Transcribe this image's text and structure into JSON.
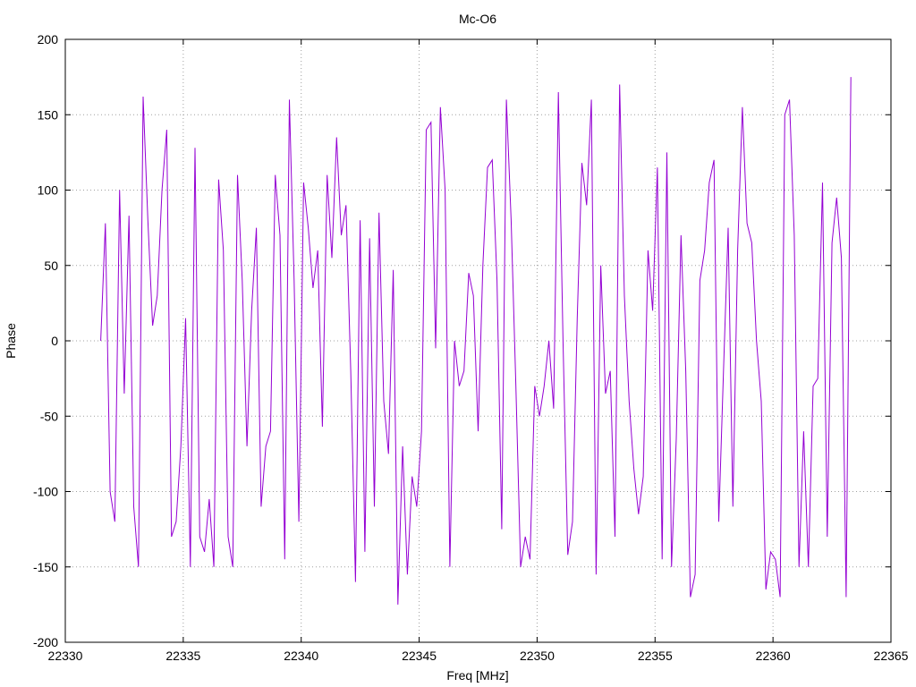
{
  "chart_data": {
    "type": "line",
    "title": "Mc-O6",
    "xlabel": "Freq [MHz]",
    "ylabel": "Phase",
    "xlim": [
      22330,
      22365
    ],
    "ylim": [
      -200,
      200
    ],
    "xticks": [
      22330,
      22335,
      22340,
      22345,
      22350,
      22355,
      22360,
      22365
    ],
    "yticks": [
      -200,
      -150,
      -100,
      -50,
      0,
      50,
      100,
      150,
      200
    ],
    "grid": true,
    "legend": false,
    "line_color": "#9400d3",
    "series": [
      {
        "values_x": [
          22331.5,
          22331.7,
          22331.9,
          22332.1,
          22332.3,
          22332.5,
          22332.7,
          22332.9,
          22333.1,
          22333.3,
          22333.5,
          22333.7,
          22333.9,
          22334.1,
          22334.3,
          22334.5,
          22334.7,
          22334.9,
          22335.1,
          22335.3,
          22335.5,
          22335.7,
          22335.9,
          22336.1,
          22336.3,
          22336.5,
          22336.7,
          22336.9,
          22337.1,
          22337.3,
          22337.5,
          22337.7,
          22337.9,
          22338.1,
          22338.3,
          22338.5,
          22338.7,
          22338.9,
          22339.1,
          22339.3,
          22339.5,
          22339.7,
          22339.9,
          22340.1,
          22340.3,
          22340.5,
          22340.7,
          22340.9,
          22341.1,
          22341.3,
          22341.5,
          22341.7,
          22341.9,
          22342.1,
          22342.3,
          22342.5,
          22342.7,
          22342.9,
          22343.1,
          22343.3,
          22343.5,
          22343.7,
          22343.9,
          22344.1,
          22344.3,
          22344.5,
          22344.7,
          22344.9,
          22345.1,
          22345.3,
          22345.5,
          22345.7,
          22345.9,
          22346.1,
          22346.3,
          22346.5,
          22346.7,
          22346.9,
          22347.1,
          22347.3,
          22347.5,
          22347.7,
          22347.9,
          22348.1,
          22348.3,
          22348.5,
          22348.7,
          22348.9,
          22349.1,
          22349.3,
          22349.5,
          22349.7,
          22349.9,
          22350.1,
          22350.3,
          22350.5,
          22350.7,
          22350.9,
          22351.1,
          22351.3,
          22351.5,
          22351.7,
          22351.9,
          22352.1,
          22352.3,
          22352.5,
          22352.7,
          22352.9,
          22353.1,
          22353.3,
          22353.5,
          22353.7,
          22353.9,
          22354.1,
          22354.3,
          22354.5,
          22354.7,
          22354.9,
          22355.1,
          22355.3,
          22355.5,
          22355.7,
          22355.9,
          22356.1,
          22356.3,
          22356.5,
          22356.7,
          22356.9,
          22357.1,
          22357.3,
          22357.5,
          22357.7,
          22357.9,
          22358.1,
          22358.3,
          22358.5,
          22358.7,
          22358.9,
          22359.1,
          22359.3,
          22359.5,
          22359.7,
          22359.9,
          22360.1,
          22360.3,
          22360.5,
          22360.7,
          22360.9,
          22361.1,
          22361.3,
          22361.5,
          22361.7,
          22361.9,
          22362.1,
          22362.3,
          22362.5,
          22362.7,
          22362.9,
          22363.1,
          22363.3
        ],
        "values_y": [
          0,
          78,
          -100,
          -120,
          100,
          -35,
          83,
          -110,
          -150,
          162,
          80,
          10,
          30,
          100,
          140,
          -130,
          -120,
          -70,
          15,
          -150,
          128,
          -130,
          -140,
          -105,
          -150,
          107,
          60,
          -130,
          -150,
          110,
          40,
          -70,
          20,
          75,
          -110,
          -70,
          -60,
          110,
          70,
          -145,
          160,
          40,
          -120,
          105,
          75,
          35,
          60,
          -57,
          110,
          55,
          135,
          70,
          90,
          -20,
          -160,
          80,
          -140,
          68,
          -110,
          85,
          -40,
          -75,
          47,
          -175,
          -70,
          -155,
          -90,
          -110,
          -60,
          140,
          145,
          -5,
          155,
          100,
          -150,
          0,
          -30,
          -20,
          45,
          30,
          -60,
          50,
          115,
          120,
          40,
          -125,
          160,
          80,
          -30,
          -150,
          -130,
          -145,
          -30,
          -50,
          -30,
          0,
          -45,
          165,
          0,
          -142,
          -120,
          15,
          118,
          90,
          160,
          -155,
          50,
          -35,
          -20,
          -130,
          170,
          30,
          -40,
          -85,
          -115,
          -90,
          60,
          20,
          115,
          -145,
          125,
          -150,
          -65,
          70,
          -20,
          -170,
          -155,
          40,
          60,
          105,
          120,
          -120,
          -20,
          75,
          -110,
          60,
          155,
          78,
          65,
          0,
          -40,
          -165,
          -140,
          -145,
          -170,
          150,
          160,
          70,
          -150,
          -60,
          -150,
          -30,
          -25,
          105,
          -130,
          65,
          95,
          55,
          -170,
          175
        ]
      }
    ]
  }
}
